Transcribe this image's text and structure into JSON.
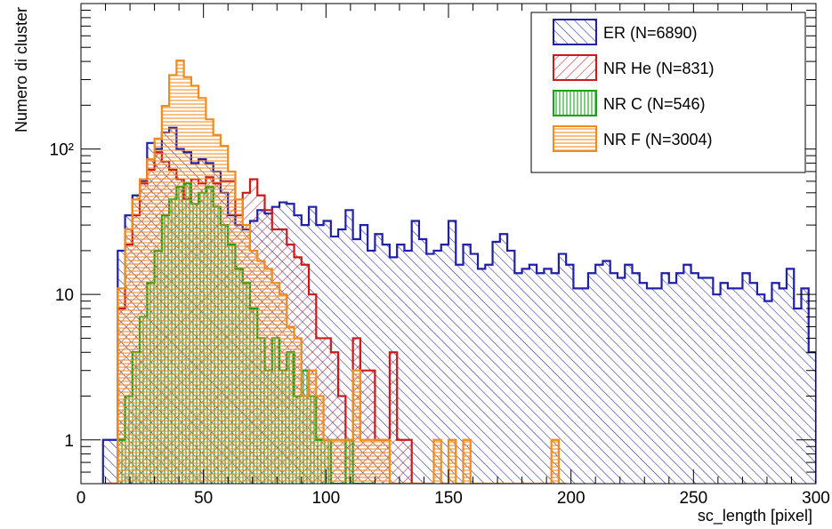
{
  "chart_data": {
    "type": "histogram",
    "title": "",
    "xlabel": "sc_length [pixel]",
    "ylabel": "Numero di cluster",
    "xlim": [
      0,
      300
    ],
    "ylim": [
      0.5,
      1000
    ],
    "yscale": "log",
    "grid": false,
    "legend_position": "top-right",
    "bin_width": 3,
    "x_ticks": [
      0,
      50,
      100,
      150,
      200,
      250,
      300
    ],
    "x_tick_labels": [
      "0",
      "50",
      "100",
      "150",
      "200",
      "250",
      "300"
    ],
    "y_ticks": [
      1,
      10,
      100
    ],
    "y_tick_labels": [
      "1",
      "10",
      "10²"
    ],
    "series": [
      {
        "name": "ER (N=6890)",
        "color": "#1f1fa8",
        "hatch": "diagonal-ne",
        "x": [
          9,
          12,
          15,
          18,
          21,
          24,
          27,
          30,
          33,
          36,
          39,
          42,
          45,
          48,
          51,
          54,
          57,
          60,
          63,
          66,
          69,
          72,
          75,
          78,
          81,
          84,
          87,
          90,
          93,
          96,
          99,
          102,
          105,
          108,
          111,
          114,
          117,
          120,
          123,
          126,
          129,
          132,
          135,
          138,
          141,
          144,
          147,
          150,
          153,
          156,
          159,
          162,
          165,
          168,
          171,
          174,
          177,
          180,
          183,
          186,
          189,
          192,
          195,
          198,
          201,
          204,
          207,
          210,
          213,
          216,
          219,
          222,
          225,
          228,
          231,
          234,
          237,
          240,
          243,
          246,
          249,
          252,
          255,
          258,
          261,
          264,
          267,
          270,
          273,
          276,
          279,
          282,
          285,
          288,
          291,
          294,
          297
        ],
        "values": [
          1,
          1,
          20,
          35,
          48,
          60,
          110,
          100,
          130,
          140,
          100,
          95,
          80,
          85,
          80,
          70,
          50,
          35,
          30,
          28,
          32,
          38,
          36,
          40,
          43,
          42,
          35,
          30,
          40,
          30,
          32,
          25,
          28,
          38,
          24,
          30,
          20,
          26,
          22,
          18,
          22,
          20,
          32,
          24,
          19,
          20,
          22,
          32,
          16,
          22,
          19,
          15,
          16,
          23,
          26,
          20,
          14,
          15,
          16,
          14,
          15,
          14,
          19,
          16,
          11,
          11,
          14,
          16,
          17,
          14,
          13,
          16,
          14,
          12,
          11,
          11,
          14,
          12,
          14,
          16,
          14,
          13,
          13,
          10,
          12,
          11,
          11,
          14,
          12,
          10,
          9,
          12,
          11,
          15,
          8,
          11,
          4
        ]
      },
      {
        "name": "NR He (N=831)",
        "color": "#cc1a1a",
        "hatch": "diagonal-nw",
        "x": [
          9,
          12,
          15,
          18,
          21,
          24,
          27,
          30,
          33,
          36,
          39,
          42,
          45,
          48,
          51,
          54,
          57,
          60,
          63,
          66,
          69,
          72,
          75,
          78,
          81,
          84,
          87,
          90,
          93,
          96,
          99,
          102,
          105,
          108,
          111,
          114,
          117,
          120,
          123,
          126,
          129,
          132,
          135
        ],
        "values": [
          0.5,
          0.5,
          8,
          22,
          35,
          58,
          72,
          95,
          82,
          72,
          62,
          45,
          62,
          58,
          64,
          58,
          60,
          60,
          35,
          50,
          62,
          48,
          38,
          28,
          28,
          22,
          18,
          16,
          10,
          5,
          5,
          4,
          2,
          1,
          5,
          3,
          3,
          1,
          1,
          4,
          1,
          1,
          0.5
        ]
      },
      {
        "name": "NR C (N=546)",
        "color": "#1aa31a",
        "hatch": "vertical",
        "x": [
          9,
          12,
          15,
          18,
          21,
          24,
          27,
          30,
          33,
          36,
          39,
          42,
          45,
          48,
          51,
          54,
          57,
          60,
          63,
          66,
          69,
          72,
          75,
          78,
          81,
          84,
          87,
          90,
          93,
          96,
          99,
          102,
          105,
          108,
          111,
          114,
          117
        ],
        "values": [
          0.5,
          0.5,
          1,
          2,
          4,
          7,
          12,
          20,
          35,
          45,
          55,
          58,
          42,
          50,
          55,
          40,
          30,
          22,
          15,
          12,
          8,
          5,
          3,
          5,
          3,
          4,
          2,
          3,
          2,
          1,
          1,
          0.5,
          0.5,
          1,
          0.5,
          0.5,
          0.5
        ]
      },
      {
        "name": "NR F (N=3004)",
        "color": "#f08c1e",
        "hatch": "horizontal",
        "x": [
          9,
          12,
          15,
          18,
          21,
          24,
          27,
          30,
          33,
          36,
          39,
          42,
          45,
          48,
          51,
          54,
          57,
          60,
          63,
          66,
          69,
          72,
          75,
          78,
          81,
          84,
          87,
          90,
          93,
          96,
          99,
          102,
          105,
          108,
          111,
          114,
          117,
          120,
          123,
          126,
          129,
          132,
          135,
          138,
          141,
          144,
          147,
          150,
          153,
          156,
          159,
          162,
          165,
          168,
          171,
          174,
          177,
          180,
          183,
          186,
          189,
          192,
          195
        ],
        "values": [
          0.5,
          0.5,
          11,
          28,
          45,
          62,
          85,
          118,
          198,
          322,
          406,
          312,
          272,
          224,
          160,
          125,
          105,
          70,
          45,
          30,
          20,
          17,
          15,
          12,
          10,
          6,
          5,
          2,
          3,
          2,
          1,
          1,
          1,
          1,
          3,
          1,
          1,
          1,
          1,
          0.5,
          0.5,
          0.5,
          0.5,
          0.5,
          0.5,
          1,
          0.5,
          1,
          0.5,
          1,
          0.5,
          0.5,
          0.5,
          0.5,
          0.5,
          0.5,
          0.5,
          0.5,
          0.5,
          0.5,
          0.5,
          1,
          0.5
        ]
      }
    ]
  }
}
